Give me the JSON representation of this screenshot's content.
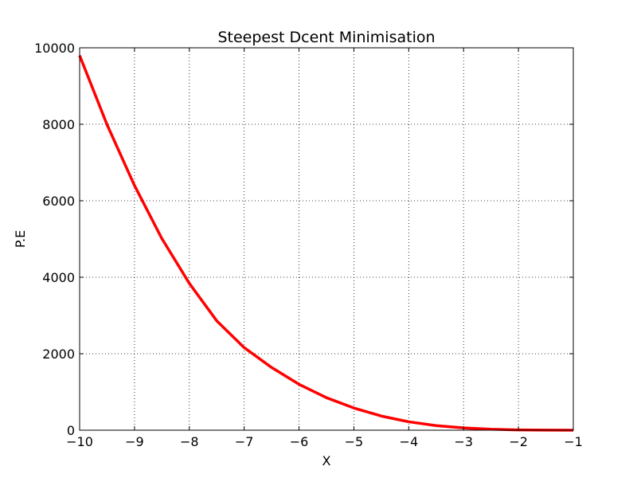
{
  "chart_data": {
    "type": "line",
    "title": "Steepest Dcent Minimisation",
    "xlabel": "X",
    "ylabel": "P.E",
    "xlim": [
      -10,
      -1
    ],
    "ylim": [
      0,
      10000
    ],
    "grid": true,
    "x_ticks": [
      -10,
      -9,
      -8,
      -7,
      -6,
      -5,
      -4,
      -3,
      -2,
      -1
    ],
    "x_tick_labels": [
      "−10",
      "−9",
      "−8",
      "−7",
      "−6",
      "−5",
      "−4",
      "−3",
      "−2",
      "−1"
    ],
    "y_ticks": [
      0,
      2000,
      4000,
      6000,
      8000,
      10000
    ],
    "y_tick_labels": [
      "0",
      "2000",
      "4000",
      "6000",
      "8000",
      "10000"
    ],
    "series": [
      {
        "color": "#ff0000",
        "x": [
          -10,
          -9.5,
          -9,
          -8.5,
          -8,
          -7.5,
          -7,
          -6.5,
          -6,
          -5.5,
          -5,
          -4.5,
          -4,
          -3.5,
          -3,
          -2.5,
          -2,
          -1.5,
          -1
        ],
        "y": [
          9800,
          7990,
          6400,
          5010,
          3840,
          2860,
          2160,
          1640,
          1200,
          850,
          580,
          370,
          220,
          120,
          60,
          25,
          8,
          2,
          0
        ]
      }
    ]
  }
}
